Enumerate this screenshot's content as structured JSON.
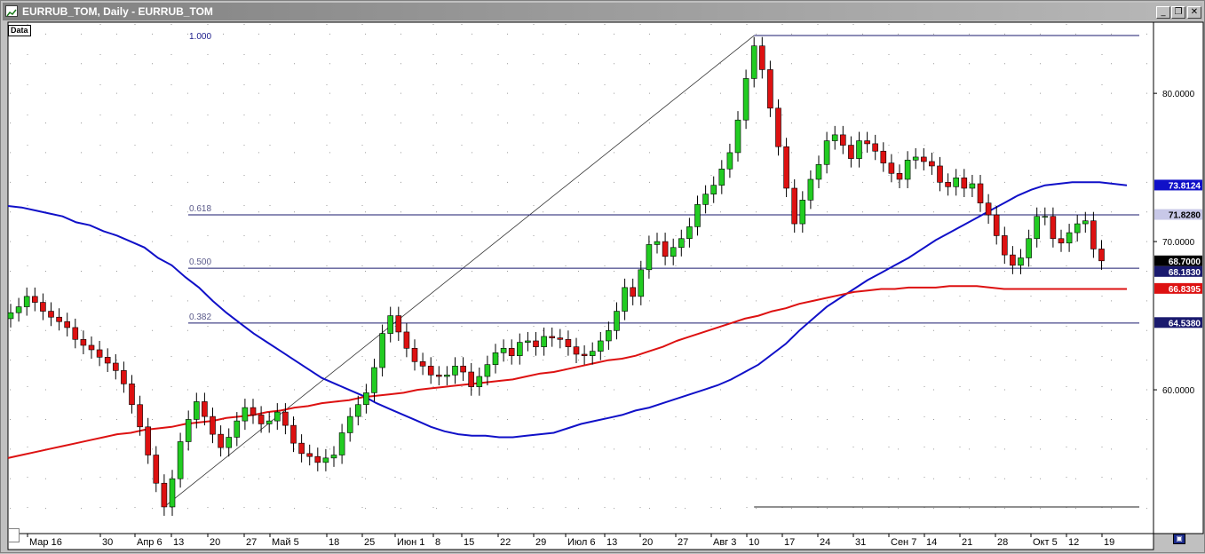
{
  "window": {
    "title": "EURRUB_TOM, Daily - EURRUB_TOM",
    "data_tag": "Data",
    "minimize_glyph": "_",
    "restore_glyph": "❐",
    "close_glyph": "✕"
  },
  "colors": {
    "background": "#ffffff",
    "bull_candle": "#22cc22",
    "bear_candle": "#dd1111",
    "ma_blue": "#1010c8",
    "ma_red": "#dd1111",
    "fib_line": "#1a1a6e"
  },
  "chart_data": {
    "type": "candlestick",
    "symbol": "EURRUB_TOM",
    "timeframe": "Daily",
    "ylim": [
      50.3,
      84.8
    ],
    "y_ticks": [
      {
        "value": 80,
        "label": "80.0000"
      },
      {
        "value": 70,
        "label": "70.0000"
      },
      {
        "value": 60,
        "label": "60.0000"
      }
    ],
    "x_ticks": [
      "Мар 16",
      "30",
      "Апр 6",
      "13",
      "20",
      "27",
      "Май 5",
      "18",
      "25",
      "Июн 1",
      "8",
      "15",
      "22",
      "29",
      "Июл 6",
      "13",
      "20",
      "27",
      "Авг 3",
      "10",
      "17",
      "24",
      "31",
      "Сен 7",
      "14",
      "21",
      "28",
      "Окт 5",
      "12",
      "19"
    ],
    "candles_first_date": "Мар 11",
    "candles_last_date": "Окт 23",
    "closes": [
      65.2,
      65.6,
      66.3,
      65.9,
      65.3,
      64.9,
      64.6,
      64.2,
      63.4,
      63.0,
      62.7,
      62.2,
      61.8,
      61.3,
      60.4,
      59.0,
      57.5,
      55.6,
      53.7,
      52.1,
      54.0,
      56.5,
      58.0,
      59.2,
      58.2,
      57.0,
      56.1,
      56.8,
      57.9,
      58.8,
      58.3,
      57.7,
      57.9,
      58.5,
      57.6,
      56.4,
      55.7,
      55.5,
      55.1,
      55.4,
      55.6,
      57.1,
      58.2,
      59.0,
      59.8,
      61.5,
      63.8,
      65.0,
      63.9,
      62.8,
      61.9,
      61.6,
      61.0,
      60.9,
      61.0,
      61.6,
      61.2,
      60.2,
      60.9,
      61.7,
      62.5,
      62.8,
      62.3,
      63.2,
      63.3,
      62.9,
      63.6,
      63.5,
      63.4,
      62.9,
      62.4,
      62.3,
      62.6,
      63.3,
      64.0,
      65.3,
      66.9,
      66.3,
      68.1,
      69.8,
      70.0,
      69.0,
      69.6,
      70.2,
      71.0,
      72.5,
      73.2,
      73.8,
      74.9,
      76.0,
      78.2,
      81.0,
      83.2,
      81.6,
      79.0,
      76.4,
      73.6,
      71.2,
      72.8,
      74.2,
      75.2,
      76.8,
      77.2,
      76.5,
      75.6,
      76.8,
      76.6,
      76.1,
      75.3,
      74.6,
      74.2,
      75.5,
      75.7,
      75.4,
      75.1,
      74.0,
      73.7,
      74.3,
      73.6,
      73.9,
      72.6,
      71.8,
      70.4,
      69.1,
      68.4,
      68.9,
      70.2,
      71.7,
      71.7,
      70.2,
      69.9,
      70.6,
      71.2,
      71.4,
      69.5,
      68.7
    ],
    "overlays": [
      {
        "type": "moving-average",
        "color": "#1010c8",
        "values": [
          72.4,
          72.3,
          72.1,
          71.9,
          71.7,
          71.3,
          71.1,
          70.7,
          70.4,
          70.0,
          69.6,
          68.9,
          68.4,
          67.6,
          66.9,
          66.0,
          65.2,
          64.5,
          63.8,
          63.2,
          62.6,
          62.0,
          61.4,
          60.8,
          60.4,
          60.0,
          59.6,
          59.1,
          58.7,
          58.3,
          57.9,
          57.5,
          57.2,
          57.0,
          56.9,
          56.9,
          56.8,
          56.8,
          56.9,
          57.0,
          57.1,
          57.4,
          57.7,
          57.9,
          58.1,
          58.3,
          58.6,
          58.8,
          59.1,
          59.4,
          59.7,
          60.0,
          60.3,
          60.7,
          61.2,
          61.7,
          62.4,
          63.1,
          64.0,
          64.8,
          65.6,
          66.2,
          66.8,
          67.4,
          67.9,
          68.4,
          68.9,
          69.5,
          70.1,
          70.6,
          71.1,
          71.6,
          72.1,
          72.6,
          73.1,
          73.5,
          73.8,
          73.9,
          74.0,
          74.0,
          74.0,
          73.9,
          73.8
        ]
      },
      {
        "type": "moving-average",
        "color": "#dd1111",
        "values": [
          55.4,
          55.6,
          55.8,
          56.0,
          56.2,
          56.4,
          56.6,
          56.8,
          57.0,
          57.1,
          57.3,
          57.4,
          57.5,
          57.7,
          57.8,
          57.9,
          58.1,
          58.2,
          58.3,
          58.5,
          58.6,
          58.8,
          58.9,
          59.1,
          59.2,
          59.3,
          59.5,
          59.6,
          59.7,
          59.8,
          60.0,
          60.1,
          60.2,
          60.3,
          60.4,
          60.5,
          60.6,
          60.7,
          60.9,
          61.1,
          61.2,
          61.4,
          61.6,
          61.8,
          62.0,
          62.1,
          62.3,
          62.6,
          62.9,
          63.3,
          63.6,
          63.9,
          64.2,
          64.5,
          64.8,
          65.0,
          65.3,
          65.5,
          65.8,
          66.0,
          66.2,
          66.4,
          66.6,
          66.7,
          66.8,
          66.8,
          66.9,
          66.9,
          66.9,
          67.0,
          67.0,
          67.0,
          66.9,
          66.8,
          66.8,
          66.8,
          66.8,
          66.8,
          66.8,
          66.8,
          66.8,
          66.8,
          66.8
        ]
      }
    ],
    "fibonacci": {
      "levels": [
        {
          "label": "1.000",
          "value": 83.9
        },
        {
          "label": "0.618",
          "value": 71.8
        },
        {
          "label": "0.500",
          "value": 68.2
        },
        {
          "label": "0.382",
          "value": 64.5
        }
      ],
      "lower_line_value": 52.1
    },
    "price_labels": [
      {
        "label": "73.8124",
        "value": 73.8124,
        "style": "blue"
      },
      {
        "label": "71.8280",
        "value": 71.828,
        "style": "gray"
      },
      {
        "label": "68.7000",
        "value": 68.7,
        "style": "black"
      },
      {
        "label": "68.1830",
        "value": 68.183,
        "style": "navy"
      },
      {
        "label": "66.8395",
        "value": 66.8395,
        "style": "red"
      },
      {
        "label": "64.5380",
        "value": 64.538,
        "style": "navy"
      }
    ]
  }
}
